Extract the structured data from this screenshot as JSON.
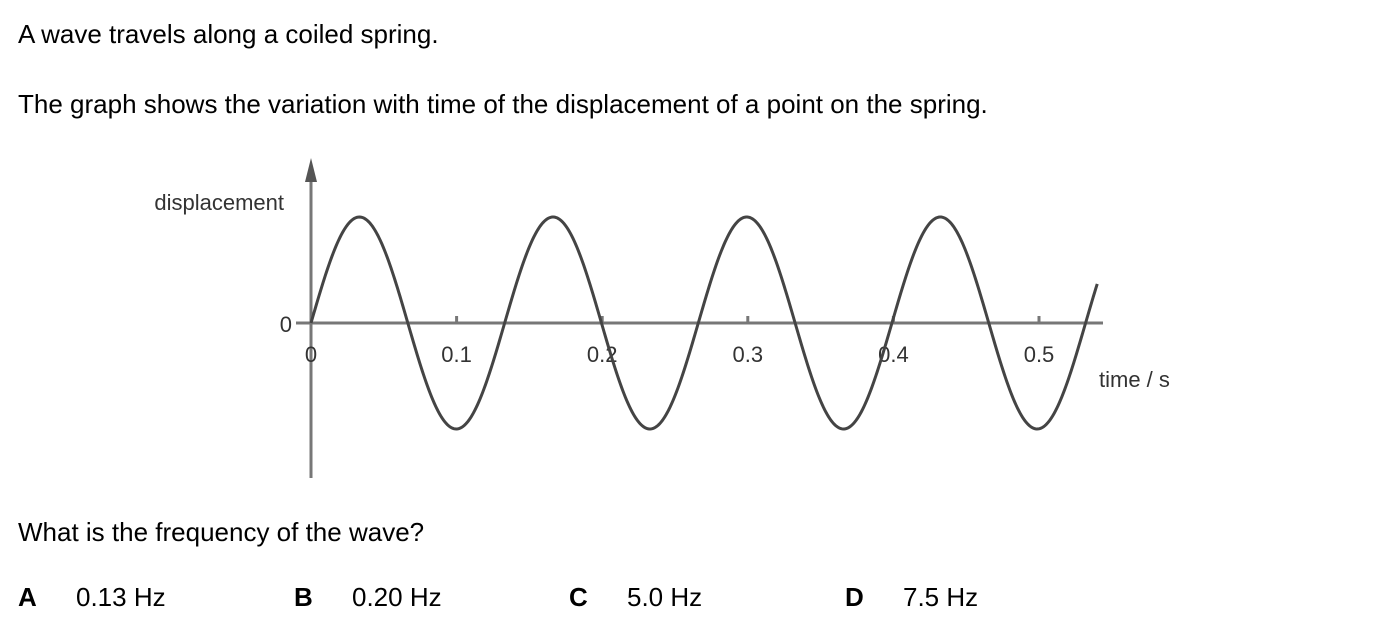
{
  "question": {
    "intro": "A wave travels along a coiled spring.",
    "description": "The graph shows the variation with time of the displacement of a point on the spring.",
    "prompt": "What is the frequency of the wave?",
    "options": [
      {
        "letter": "A",
        "text": "0.13 Hz"
      },
      {
        "letter": "B",
        "text": "0.20 Hz"
      },
      {
        "letter": "C",
        "text": "5.0 Hz"
      },
      {
        "letter": "D",
        "text": "7.5 Hz"
      }
    ]
  },
  "chart_data": {
    "type": "line",
    "title": "",
    "xlabel": "time / s",
    "ylabel": "displacement",
    "x_ticks": [
      "0",
      "0.1",
      "0.2",
      "0.3",
      "0.4",
      "0.5"
    ],
    "y_ticks": [
      "0"
    ],
    "xlim": [
      0,
      0.54
    ],
    "curve": "sine",
    "period_s": 0.133,
    "frequency_hz": 7.5,
    "initial_phase": "zero, rising",
    "grid": false,
    "colors": {
      "axes": "#777777",
      "curve": "#444444",
      "text": "#333333"
    }
  }
}
